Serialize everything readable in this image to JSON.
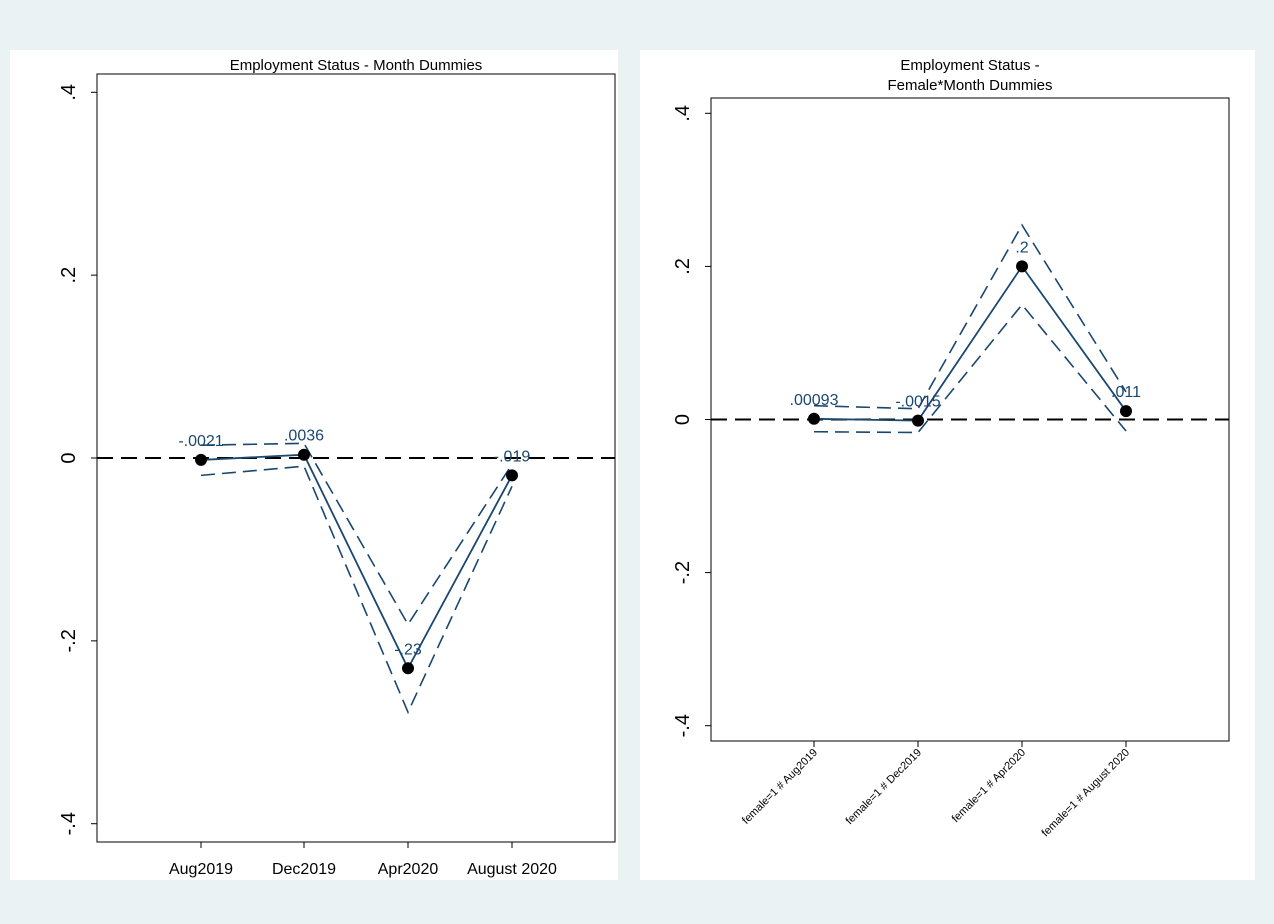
{
  "chart_data": [
    {
      "type": "line",
      "title": "Employment Status - Month Dummies",
      "categories": [
        "Aug2019",
        "Dec2019",
        "Apr2020",
        "August 2020"
      ],
      "yticks": [
        -0.4,
        -0.2,
        0,
        0.2,
        0.4
      ],
      "ytick_labels": [
        "-.4",
        "-.2",
        "0",
        ".2",
        ".4"
      ],
      "ylim": [
        -0.42,
        0.42
      ],
      "series": [
        {
          "values": [
            -0.0021,
            0.0036,
            -0.23,
            -0.019
          ],
          "labels": [
            "-.0021",
            ".0036",
            "-.23",
            "-.019"
          ]
        }
      ],
      "ci_lower": [
        -0.019,
        -0.009,
        -0.278,
        -0.031
      ],
      "ci_upper": [
        0.014,
        0.016,
        -0.182,
        -0.007
      ],
      "reference_line": 0,
      "grid": false
    },
    {
      "type": "line",
      "title": [
        "Employment Status -",
        "Female*Month Dummies"
      ],
      "categories": [
        "female=1 # Aug2019",
        "female=1 # Dec2019",
        "female=1 # Apr2020",
        "female=1 # August 2020"
      ],
      "yticks": [
        -0.4,
        -0.2,
        0,
        0.2,
        0.4
      ],
      "ytick_labels": [
        "-.4",
        "-.2",
        "0",
        ".2",
        ".4"
      ],
      "ylim": [
        -0.42,
        0.42
      ],
      "series": [
        {
          "values": [
            0.00093,
            -0.0015,
            0.2,
            0.011
          ],
          "labels": [
            ".00093",
            "-.0015",
            ".2",
            ".011"
          ]
        }
      ],
      "ci_lower": [
        -0.016,
        -0.017,
        0.15,
        -0.015
      ],
      "ci_upper": [
        0.018,
        0.014,
        0.254,
        0.036
      ],
      "reference_line": 0,
      "grid": false
    }
  ],
  "colors": {
    "background": "#eaf2f3",
    "plot_area": "#ffffff",
    "series_line": "#1a476f",
    "marker": "#000000",
    "reference_line": "#000000"
  }
}
